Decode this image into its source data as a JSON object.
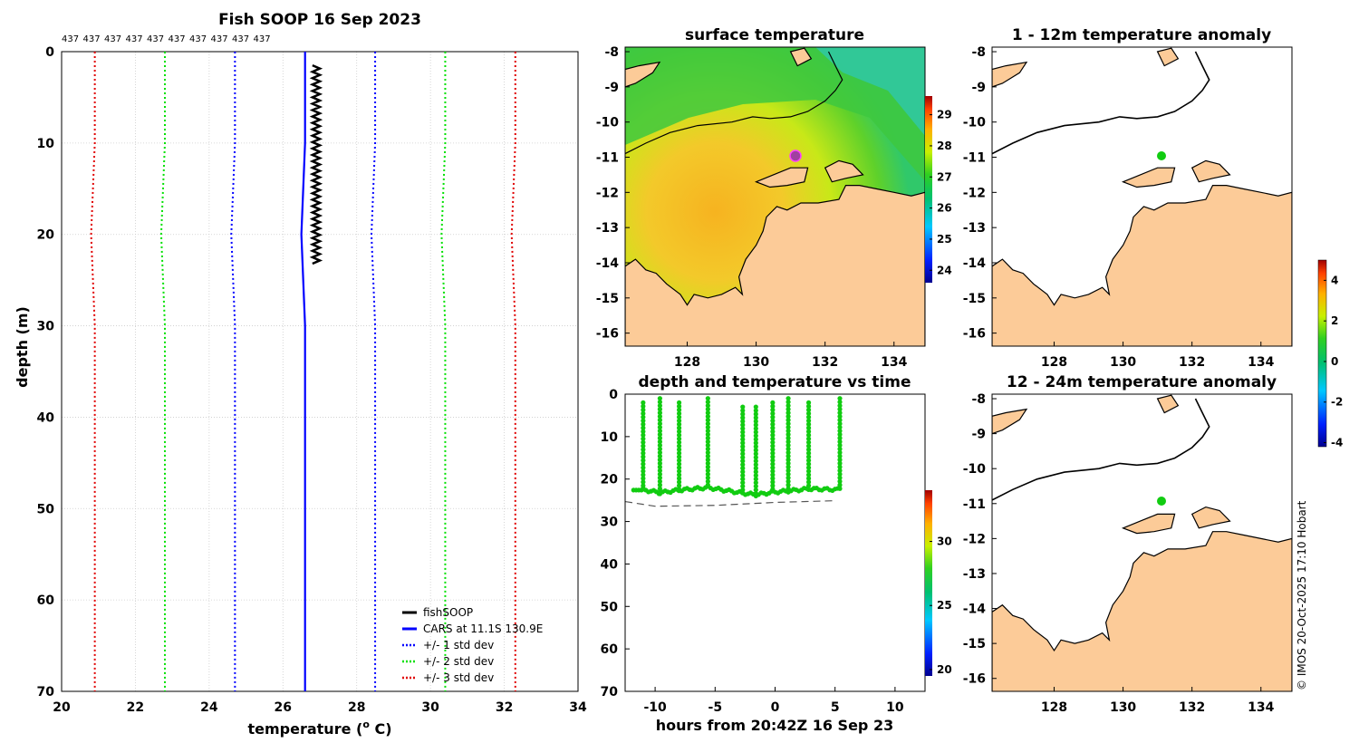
{
  "colors": {
    "land": "#fccb98",
    "blue": "#0000ff",
    "green": "#00e000",
    "red": "#e00000",
    "black": "#000000",
    "dot": "#11cc11"
  },
  "credit": "© IMOS 20-Oct-2025 17:10 Hobart",
  "profile": {
    "title": "Fish SOOP 16 Sep 2023",
    "top_labels": [
      "437",
      "437",
      "437",
      "437",
      "437",
      "437",
      "437",
      "437",
      "437",
      "437"
    ],
    "xlabel": "temperature (",
    "xlabel_sup": "o",
    "xlabel_end": " C)",
    "ylabel": "depth (m)",
    "xlim": [
      20,
      34
    ],
    "ylim": [
      0,
      70
    ],
    "xticks": [
      "20",
      "22",
      "24",
      "26",
      "28",
      "30",
      "32",
      "34"
    ],
    "yticks": [
      "0",
      "10",
      "20",
      "30",
      "40",
      "50",
      "60",
      "70"
    ],
    "legend": [
      "fishSOOP",
      "CARS at 11.1S 130.9E",
      "+/- 1 std dev",
      "+/- 2 std dev",
      "+/- 3 std dev"
    ]
  },
  "chart_data": [
    {
      "type": "line",
      "title": "Fish SOOP 16 Sep 2023",
      "xlabel": "temperature (o C)",
      "ylabel": "depth (m)",
      "xlim": [
        20,
        34
      ],
      "ylim": [
        70,
        0
      ],
      "series": [
        {
          "name": "fishSOOP",
          "temp_range": [
            26.8,
            27.0
          ],
          "depth_range": [
            1.5,
            23.5
          ]
        },
        {
          "name": "CARS at 11.1S 130.9E",
          "x": [
            26.6,
            26.6,
            26.5,
            26.6,
            26.6
          ],
          "y": [
            0,
            10,
            20,
            30,
            70
          ]
        },
        {
          "name": "+/- 1 std dev",
          "x_low": [
            24.7,
            24.7,
            24.6,
            24.7,
            24.7
          ],
          "x_high": [
            28.5,
            28.5,
            28.4,
            28.5,
            28.5
          ],
          "y": [
            0,
            10,
            20,
            30,
            70
          ]
        },
        {
          "name": "+/- 2 std dev",
          "x_low": [
            22.8,
            22.8,
            22.7,
            22.8,
            22.8
          ],
          "x_high": [
            30.4,
            30.4,
            30.3,
            30.4,
            30.4
          ],
          "y": [
            0,
            10,
            20,
            30,
            70
          ]
        },
        {
          "name": "+/- 3 std dev",
          "x_low": [
            20.9,
            20.9,
            20.8,
            20.9,
            20.9
          ],
          "x_high": [
            32.3,
            32.3,
            32.2,
            32.3,
            32.3
          ],
          "y": [
            0,
            10,
            20,
            30,
            70
          ]
        }
      ]
    },
    {
      "type": "scatter",
      "title": "depth and temperature vs time",
      "xlabel": "hours from 20:42Z 16 Sep 23",
      "xlim": [
        -12.5,
        12.5
      ],
      "ylim": [
        70,
        0
      ],
      "casts_hours": [
        -11,
        -9.6,
        -8,
        -5.6,
        -2.7,
        -1.6,
        -0.2,
        1.1,
        2.8,
        5.4
      ],
      "cast_min_depth": [
        2,
        1,
        2,
        1,
        3,
        3,
        2,
        1,
        2,
        1
      ],
      "bottom_depth": [
        22.5,
        23.2,
        22.6,
        22.0,
        23.3,
        23.7,
        23.1,
        22.8,
        22.3,
        22.5
      ],
      "seafloor_dashed": {
        "x": [
          -12.5,
          -10,
          -5,
          0,
          5
        ],
        "y": [
          25.3,
          26.4,
          26.2,
          25.5,
          25.1
        ]
      },
      "colorbar": {
        "ticks": [
          "20",
          "25",
          "30"
        ],
        "range": [
          19.5,
          34
        ]
      }
    },
    {
      "type": "heatmap",
      "title": "surface temperature",
      "xticks": [
        "128",
        "130",
        "132",
        "134"
      ],
      "yticks": [
        "-8",
        "-9",
        "-10",
        "-11",
        "-12",
        "-13",
        "-14",
        "-15",
        "-16"
      ],
      "colorbar": {
        "ticks": [
          "24",
          "25",
          "26",
          "27",
          "28",
          "29"
        ],
        "range": [
          23.6,
          29.6
        ]
      }
    },
    {
      "type": "scatter",
      "title": "1 - 12m temperature anomaly",
      "point": {
        "lon": 131.0,
        "lat": -11.1
      },
      "xticks": [
        "128",
        "130",
        "132",
        "134"
      ],
      "yticks": [
        "-8",
        "-9",
        "-10",
        "-11",
        "-12",
        "-13",
        "-14",
        "-15",
        "-16"
      ],
      "colorbar": {
        "ticks": [
          "-4",
          "-2",
          "0",
          "2",
          "4"
        ],
        "range": [
          -4.2,
          5.0
        ]
      }
    },
    {
      "type": "scatter",
      "title": "12 - 24m temperature anomaly",
      "point": {
        "lon": 131.0,
        "lat": -11.1
      },
      "xticks": [
        "128",
        "130",
        "132",
        "134"
      ],
      "yticks": [
        "-8",
        "-9",
        "-10",
        "-11",
        "-12",
        "-13",
        "-14",
        "-15",
        "-16"
      ]
    }
  ],
  "timeplot": {
    "title": "depth and temperature vs time",
    "xlabel": "hours from 20:42Z 16 Sep 23",
    "xticks": [
      "-10",
      "-5",
      "0",
      "5",
      "10"
    ],
    "yticks": [
      "0",
      "10",
      "20",
      "30",
      "40",
      "50",
      "60",
      "70"
    ],
    "cb_ticks": [
      "20",
      "25",
      "30"
    ]
  },
  "sst": {
    "title": "surface temperature",
    "xticks": [
      "128",
      "130",
      "132",
      "134"
    ],
    "yticks": [
      "-8",
      "-9",
      "-10",
      "-11",
      "-12",
      "-13",
      "-14",
      "-15",
      "-16"
    ],
    "cb_ticks": [
      "24",
      "25",
      "26",
      "27",
      "28",
      "29"
    ]
  },
  "anom1": {
    "title": "1 - 12m temperature anomaly",
    "xticks": [
      "128",
      "130",
      "132",
      "134"
    ],
    "yticks": [
      "-8",
      "-9",
      "-10",
      "-11",
      "-12",
      "-13",
      "-14",
      "-15",
      "-16"
    ],
    "cb_ticks": [
      "-4",
      "-2",
      "0",
      "2",
      "4"
    ]
  },
  "anom2": {
    "title": "12 - 24m temperature anomaly",
    "xticks": [
      "128",
      "130",
      "132",
      "134"
    ],
    "yticks": [
      "-8",
      "-9",
      "-10",
      "-11",
      "-12",
      "-13",
      "-14",
      "-15",
      "-16"
    ]
  }
}
